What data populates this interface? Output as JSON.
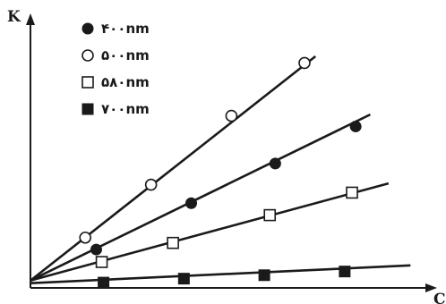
{
  "chart_data": {
    "type": "scatter",
    "xlabel": "C",
    "ylabel": "K",
    "xlim": [
      0,
      10
    ],
    "ylim": [
      0,
      10
    ],
    "grid": false,
    "legend_position": "top-left",
    "series": [
      {
        "name": "۴۰۰nm",
        "marker": "filled-circle",
        "fit_line": [
          [
            0,
            0.28
          ],
          [
            9.3,
            6.55
          ]
        ],
        "points": [
          [
            1.8,
            1.45
          ],
          [
            4.4,
            3.2
          ],
          [
            6.7,
            4.7
          ],
          [
            8.9,
            6.1
          ]
        ]
      },
      {
        "name": "۵۰۰nm",
        "marker": "open-circle",
        "fit_line": [
          [
            0,
            0.28
          ],
          [
            7.8,
            8.75
          ]
        ],
        "points": [
          [
            1.5,
            1.9
          ],
          [
            3.3,
            3.9
          ],
          [
            5.5,
            6.5
          ],
          [
            7.5,
            8.5
          ]
        ]
      },
      {
        "name": "۵۸۰nm",
        "marker": "open-square",
        "fit_line": [
          [
            0,
            0.28
          ],
          [
            9.8,
            3.95
          ]
        ],
        "points": [
          [
            1.95,
            0.98
          ],
          [
            3.9,
            1.7
          ],
          [
            6.55,
            2.75
          ],
          [
            8.8,
            3.6
          ]
        ]
      },
      {
        "name": "۷۰۰nm",
        "marker": "filled-square",
        "fit_line": [
          [
            0,
            0.18
          ],
          [
            10.4,
            0.85
          ]
        ],
        "points": [
          [
            2.0,
            0.2
          ],
          [
            4.2,
            0.35
          ],
          [
            6.4,
            0.48
          ],
          [
            8.6,
            0.62
          ]
        ]
      }
    ]
  }
}
